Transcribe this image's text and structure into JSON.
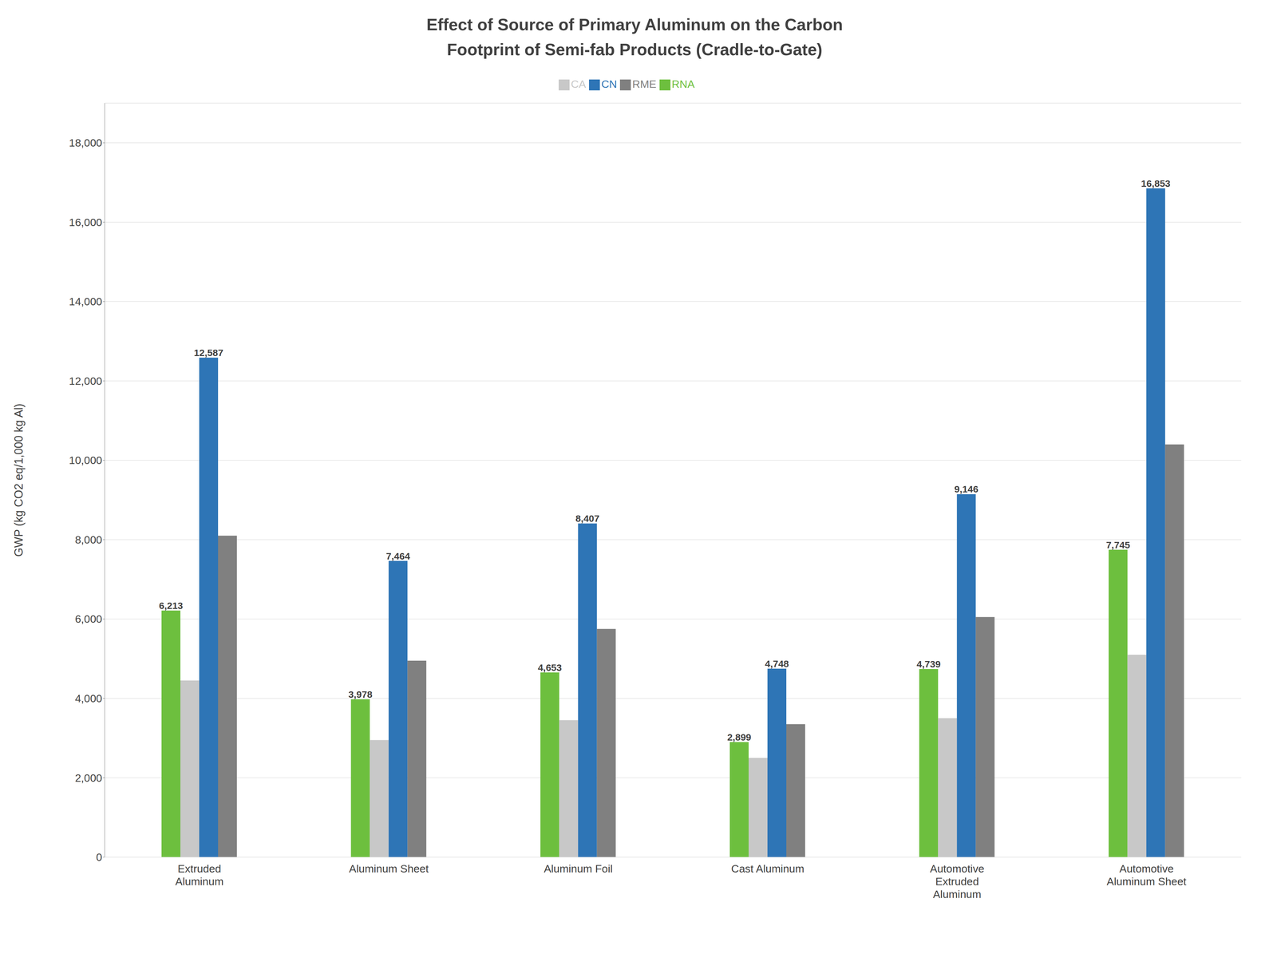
{
  "chart_data": {
    "type": "bar",
    "title": "Effect of Source of Primary Aluminum on the Carbon\nFootprint of Semi-fab Products (Cradle-to-Gate)",
    "ylabel": "GWP (kg CO2 eq/1,000 kg Al)",
    "categories": [
      "Extruded\nAluminum",
      "Aluminum Sheet",
      "Aluminum Foil",
      "Cast Aluminum",
      "Automotive\nExtruded\nAluminum",
      "Automotive\nAluminum Sheet"
    ],
    "series": [
      {
        "name": "RNA",
        "color": "#6DBF3E",
        "values": [
          6213,
          3978,
          4653,
          2899,
          4739,
          7745
        ],
        "data_labels": true,
        "value_labels": [
          "6,213",
          "3,978",
          "4,653",
          "2,899",
          "4,739",
          "7,745"
        ]
      },
      {
        "name": "CA",
        "color": "#C8C8C8",
        "values": [
          4450,
          2950,
          3450,
          2500,
          3500,
          5100
        ]
      },
      {
        "name": "CN",
        "color": "#2E75B6",
        "values": [
          12587,
          7464,
          8407,
          4748,
          9146,
          16853
        ],
        "data_labels": true,
        "value_labels": [
          "12,587",
          "7,464",
          "8,407",
          "4,748",
          "9,146",
          "16,853"
        ]
      },
      {
        "name": "RME",
        "color": "#808080",
        "values": [
          8100,
          4950,
          5750,
          3350,
          6050,
          10400
        ]
      }
    ],
    "ylim": [
      0,
      19000
    ],
    "yticks": [
      0,
      {
        "value": 2000,
        "label": "2,000"
      },
      {
        "value": 4000,
        "label": "4,000"
      },
      {
        "value": 6000,
        "label": "6,000"
      },
      {
        "value": 8000,
        "label": "8,000"
      },
      {
        "value": 10000,
        "label": "10,000"
      },
      {
        "value": 12000,
        "label": "12,000"
      },
      {
        "value": 14000,
        "label": "14,000"
      },
      {
        "value": 16000,
        "label": "16,000"
      },
      {
        "value": 18000,
        "label": "18,000"
      }
    ],
    "grid": true,
    "legend": "top"
  }
}
